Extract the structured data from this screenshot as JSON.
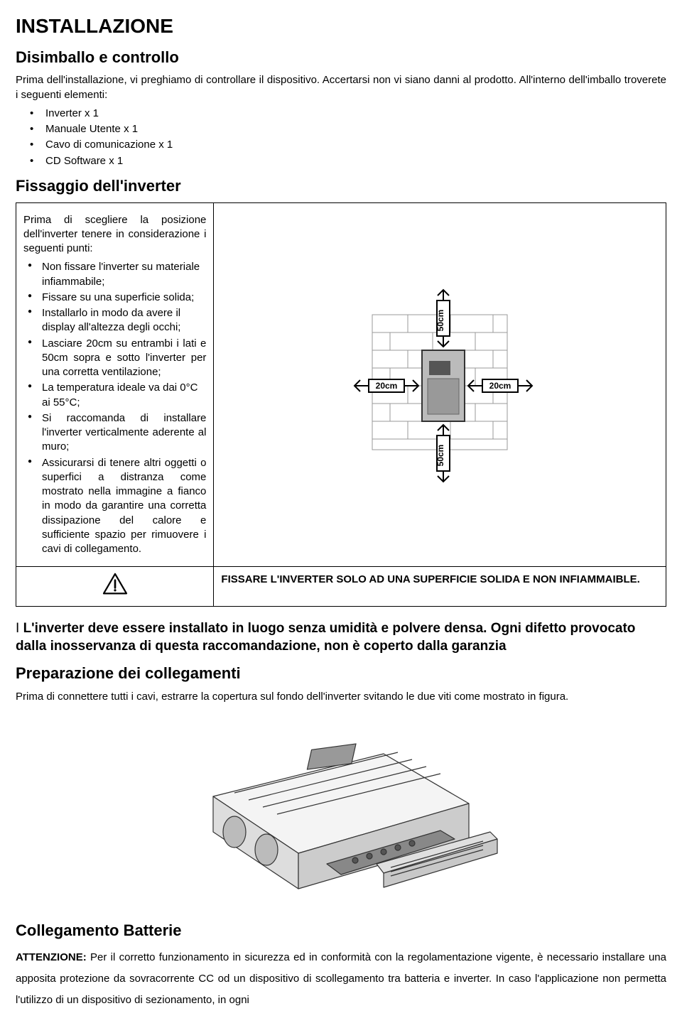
{
  "h1": "INSTALLAZIONE",
  "sec1": {
    "title": "Disimballo e controllo",
    "intro": "Prima dell'installazione, vi preghiamo di controllare il dispositivo. Accertarsi non vi siano danni al prodotto. All'interno dell'imballo troverete i seguenti elementi:",
    "items": [
      "Inverter x 1",
      "Manuale Utente x 1",
      "Cavo di comunicazione x 1",
      "CD Software x 1"
    ]
  },
  "sec2": {
    "title": "Fissaggio dell'inverter",
    "lead": "Prima di scegliere la posizione dell'inverter tenere in considerazione i seguenti punti:",
    "pts": [
      "Non fissare l'inverter su materiale infiammabile;",
      "Fissare su una superficie solida;",
      "Installarlo in modo da avere il display all'altezza degli occhi;",
      "Lasciare 20cm su entrambi i lati e 50cm sopra e sotto l'inverter per una corretta ventilazione;",
      "La temperatura ideale va dai  0°C ai 55°C;",
      "Si raccomanda di installare l'inverter verticalmente aderente al muro;",
      "Assicurarsi di tenere altri oggetti o superfici a distranza come mostrato nella immagine a fianco in modo da garantire una corretta dissipazione del calore e sufficiente spazio per rimuovere i cavi di collegamento."
    ],
    "warn": "FISSARE L'INVERTER SOLO AD UNA SUPERFICIE SOLIDA E NON INFIAMMAIBLE.",
    "diagram": {
      "top": "50cm",
      "bottom": "50cm",
      "left": "20cm",
      "right": "20cm"
    }
  },
  "note": "I L'inverter deve essere installato in luogo senza umidità e polvere densa. Ogni difetto provocato dalla inosservanza di questa raccomandazione, non è coperto dalla garanzia",
  "sec3": {
    "title": "Preparazione dei collegamenti",
    "text": "Prima di connettere tutti i cavi, estrarre la copertura sul fondo dell'inverter svitando le due viti come mostrato in figura."
  },
  "sec4": {
    "title": "Collegamento Batterie",
    "attn_label": "ATTENZIONE:",
    "attn_text": " Per il corretto funzionamento in sicurezza ed in conformità con la regolamentazione vigente, è necessario installare una apposita protezione da sovracorrente CC od un dispositivo di scollegamento tra batteria e inverter. In caso l'applicazione non permetta l'utilizzo di un dispositivo di sezionamento, in ogni"
  }
}
